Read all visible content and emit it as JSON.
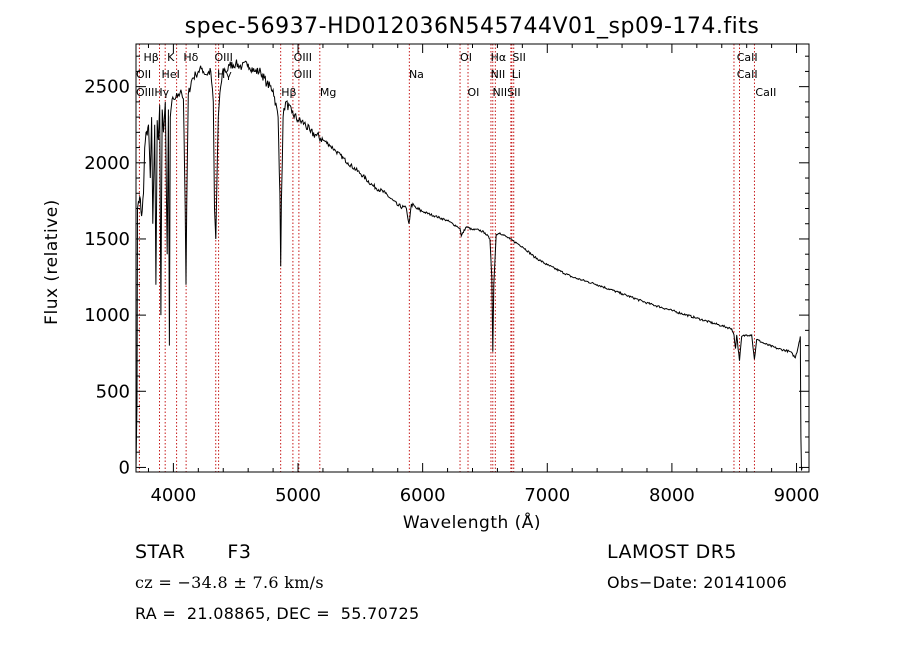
{
  "chart_data": {
    "type": "line",
    "title": "spec-56937-HD012036N545744V01_sp09-174.fits",
    "xlabel": "Wavelength (Å)",
    "ylabel": "Flux (relative)",
    "xlim": [
      3700,
      9100
    ],
    "ylim": [
      -30,
      2780
    ],
    "x_ticks": [
      4000,
      5000,
      6000,
      7000,
      8000,
      9000
    ],
    "y_ticks": [
      0,
      500,
      1000,
      1500,
      2000,
      2500
    ],
    "grid": false,
    "legend": "none",
    "series": [
      {
        "color": "#000000",
        "x": [
          3700,
          3708,
          3712,
          3720,
          3730,
          3745,
          3760,
          3770,
          3780,
          3790,
          3800,
          3815,
          3825,
          3835,
          3850,
          3860,
          3870,
          3880,
          3890,
          3900,
          3910,
          3920,
          3935,
          3950,
          3960,
          3968,
          3975,
          3985,
          4000,
          4020,
          4040,
          4060,
          4080,
          4095,
          4101,
          4107,
          4120,
          4150,
          4180,
          4200,
          4230,
          4260,
          4300,
          4320,
          4330,
          4340,
          4350,
          4360,
          4380,
          4400,
          4430,
          4450,
          4500,
          4550,
          4600,
          4650,
          4700,
          4750,
          4800,
          4840,
          4855,
          4861,
          4867,
          4880,
          4900,
          4950,
          5000,
          5050,
          5100,
          5150,
          5200,
          5250,
          5300,
          5400,
          5500,
          5600,
          5700,
          5800,
          5870,
          5890,
          5896,
          5910,
          5950,
          6000,
          6100,
          6200,
          6280,
          6300,
          6310,
          6350,
          6400,
          6450,
          6500,
          6540,
          6555,
          6563,
          6571,
          6590,
          6620,
          6700,
          6800,
          6900,
          7000,
          7200,
          7400,
          7600,
          7800,
          8000,
          8200,
          8400,
          8480,
          8498,
          8510,
          8520,
          8542,
          8560,
          8600,
          8640,
          8662,
          8680,
          8750,
          8850,
          8950,
          8990,
          9010,
          9020,
          9030,
          9035,
          9040,
          9045
        ],
        "y": [
          -10,
          420,
          1700,
          1750,
          1780,
          1650,
          1800,
          2100,
          2200,
          2180,
          2250,
          1900,
          2300,
          1600,
          2250,
          1200,
          2280,
          2150,
          2380,
          1000,
          2350,
          2200,
          2400,
          1400,
          2350,
          800,
          2300,
          2380,
          2420,
          2430,
          2450,
          2480,
          2420,
          1700,
          1200,
          1700,
          2450,
          2550,
          2580,
          2600,
          2620,
          2580,
          2600,
          2400,
          1700,
          1500,
          1900,
          2300,
          2500,
          2620,
          2600,
          2640,
          2650,
          2630,
          2650,
          2600,
          2600,
          2520,
          2480,
          2300,
          1800,
          1320,
          1750,
          2300,
          2400,
          2330,
          2280,
          2260,
          2200,
          2180,
          2150,
          2120,
          2080,
          2000,
          1930,
          1850,
          1800,
          1720,
          1700,
          1600,
          1630,
          1730,
          1700,
          1680,
          1650,
          1620,
          1580,
          1570,
          1520,
          1580,
          1560,
          1560,
          1540,
          1500,
          1250,
          760,
          1200,
          1530,
          1540,
          1500,
          1450,
          1380,
          1330,
          1250,
          1200,
          1140,
          1080,
          1030,
          980,
          930,
          910,
          870,
          780,
          870,
          700,
          860,
          870,
          870,
          710,
          840,
          810,
          780,
          760,
          720,
          780,
          820,
          860,
          200,
          -20,
          0
        ]
      }
    ],
    "line_markers": [
      {
        "name": "Hβ",
        "x": 3889
      },
      {
        "name": "K",
        "x": 3934
      },
      {
        "name": "OII",
        "x": 3727
      },
      {
        "name": "HeI",
        "x": 4026
      },
      {
        "name": "Hδ",
        "x": 4102
      },
      {
        "name": "OIII",
        "x": 4363
      },
      {
        "name": "Hγ",
        "x": 4340
      },
      {
        "name": "Hβ",
        "x": 4861
      },
      {
        "name": "OIII",
        "x": 4959
      },
      {
        "name": "OIII",
        "x": 5007
      },
      {
        "name": "Mg",
        "x": 5175
      },
      {
        "name": "Na",
        "x": 5893
      },
      {
        "name": "OI",
        "x": 6300
      },
      {
        "name": "OI",
        "x": 6364
      },
      {
        "name": "Hα",
        "x": 6563
      },
      {
        "name": "NII",
        "x": 6548
      },
      {
        "name": "NII",
        "x": 6583
      },
      {
        "name": "SII",
        "x": 6716
      },
      {
        "name": "SII",
        "x": 6731
      },
      {
        "name": "Li",
        "x": 6708
      },
      {
        "name": "CaII",
        "x": 8498
      },
      {
        "name": "CaII",
        "x": 8542
      },
      {
        "name": "CaII",
        "x": 8662
      }
    ],
    "marker_labels": [
      {
        "text": "Hβ",
        "x": 3760,
        "row": 0
      },
      {
        "text": "K",
        "x": 3950,
        "row": 0
      },
      {
        "text": "Hδ",
        "x": 4080,
        "row": 0
      },
      {
        "text": "OIII",
        "x": 4330,
        "row": 0
      },
      {
        "text": "OIII",
        "x": 4965,
        "row": 0
      },
      {
        "text": "OI",
        "x": 6300,
        "row": 0
      },
      {
        "text": "Hα",
        "x": 6545,
        "row": 0
      },
      {
        "text": "SII",
        "x": 6720,
        "row": 0
      },
      {
        "text": "CaII",
        "x": 8520,
        "row": 0
      },
      {
        "text": "OII",
        "x": 3700,
        "row": 1
      },
      {
        "text": "HeI",
        "x": 3905,
        "row": 1
      },
      {
        "text": "Hγ",
        "x": 4350,
        "row": 1
      },
      {
        "text": "OIII",
        "x": 4965,
        "row": 1
      },
      {
        "text": "Na",
        "x": 5890,
        "row": 1
      },
      {
        "text": "NII",
        "x": 6545,
        "row": 1
      },
      {
        "text": "Li",
        "x": 6715,
        "row": 1
      },
      {
        "text": "CaII",
        "x": 8520,
        "row": 1
      },
      {
        "text": "OIIIHγ",
        "x": 3700,
        "row": 2
      },
      {
        "text": "Hβ",
        "x": 4865,
        "row": 2
      },
      {
        "text": "Mg",
        "x": 5175,
        "row": 2
      },
      {
        "text": "OI",
        "x": 6360,
        "row": 2
      },
      {
        "text": "NIISII",
        "x": 6560,
        "row": 2
      },
      {
        "text": "CaII",
        "x": 8670,
        "row": 2
      }
    ]
  },
  "info": {
    "star_type": "STAR",
    "subclass": "F3",
    "survey": "LAMOST DR5",
    "cz": "cz = −34.8 ± 7.6 km/s",
    "obs_date": "Obs−Date: 20141006",
    "coords": "RA =  21.08865, DEC =  55.70725"
  }
}
